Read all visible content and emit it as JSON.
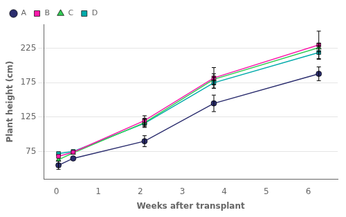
{
  "chart_data": {
    "type": "line",
    "x": [
      0.05,
      0.4,
      2.1,
      3.75,
      6.25
    ],
    "series": [
      {
        "name": "A",
        "color": "#2b2d6e",
        "marker": "circle",
        "values": [
          55,
          65,
          90,
          145,
          188
        ],
        "errors": [
          6,
          0,
          8,
          12,
          10
        ]
      },
      {
        "name": "B",
        "color": "#ff1aaa",
        "marker": "square",
        "values": [
          68,
          74,
          120,
          182,
          230
        ],
        "errors": [
          0,
          0,
          7,
          15,
          20
        ]
      },
      {
        "name": "C",
        "color": "#33cc55",
        "marker": "triangle",
        "values": [
          63,
          73,
          117,
          180,
          226
        ],
        "errors": [
          0,
          0,
          6,
          8,
          6
        ]
      },
      {
        "name": "D",
        "color": "#00aaaa",
        "marker": "square",
        "values": [
          72,
          75,
          116,
          175,
          219
        ],
        "errors": [
          0,
          0,
          6,
          8,
          10
        ]
      }
    ],
    "xlabel": "Weeks after transplant",
    "ylabel": "Plant height (cm)",
    "xlim": [
      -0.3,
      6.7
    ],
    "ylim": [
      35,
      260
    ],
    "xticks": [
      0,
      1,
      2,
      3,
      4,
      5,
      6
    ],
    "yticks": [
      75,
      125,
      175,
      225
    ],
    "grid": "y",
    "legend": "upper left"
  }
}
